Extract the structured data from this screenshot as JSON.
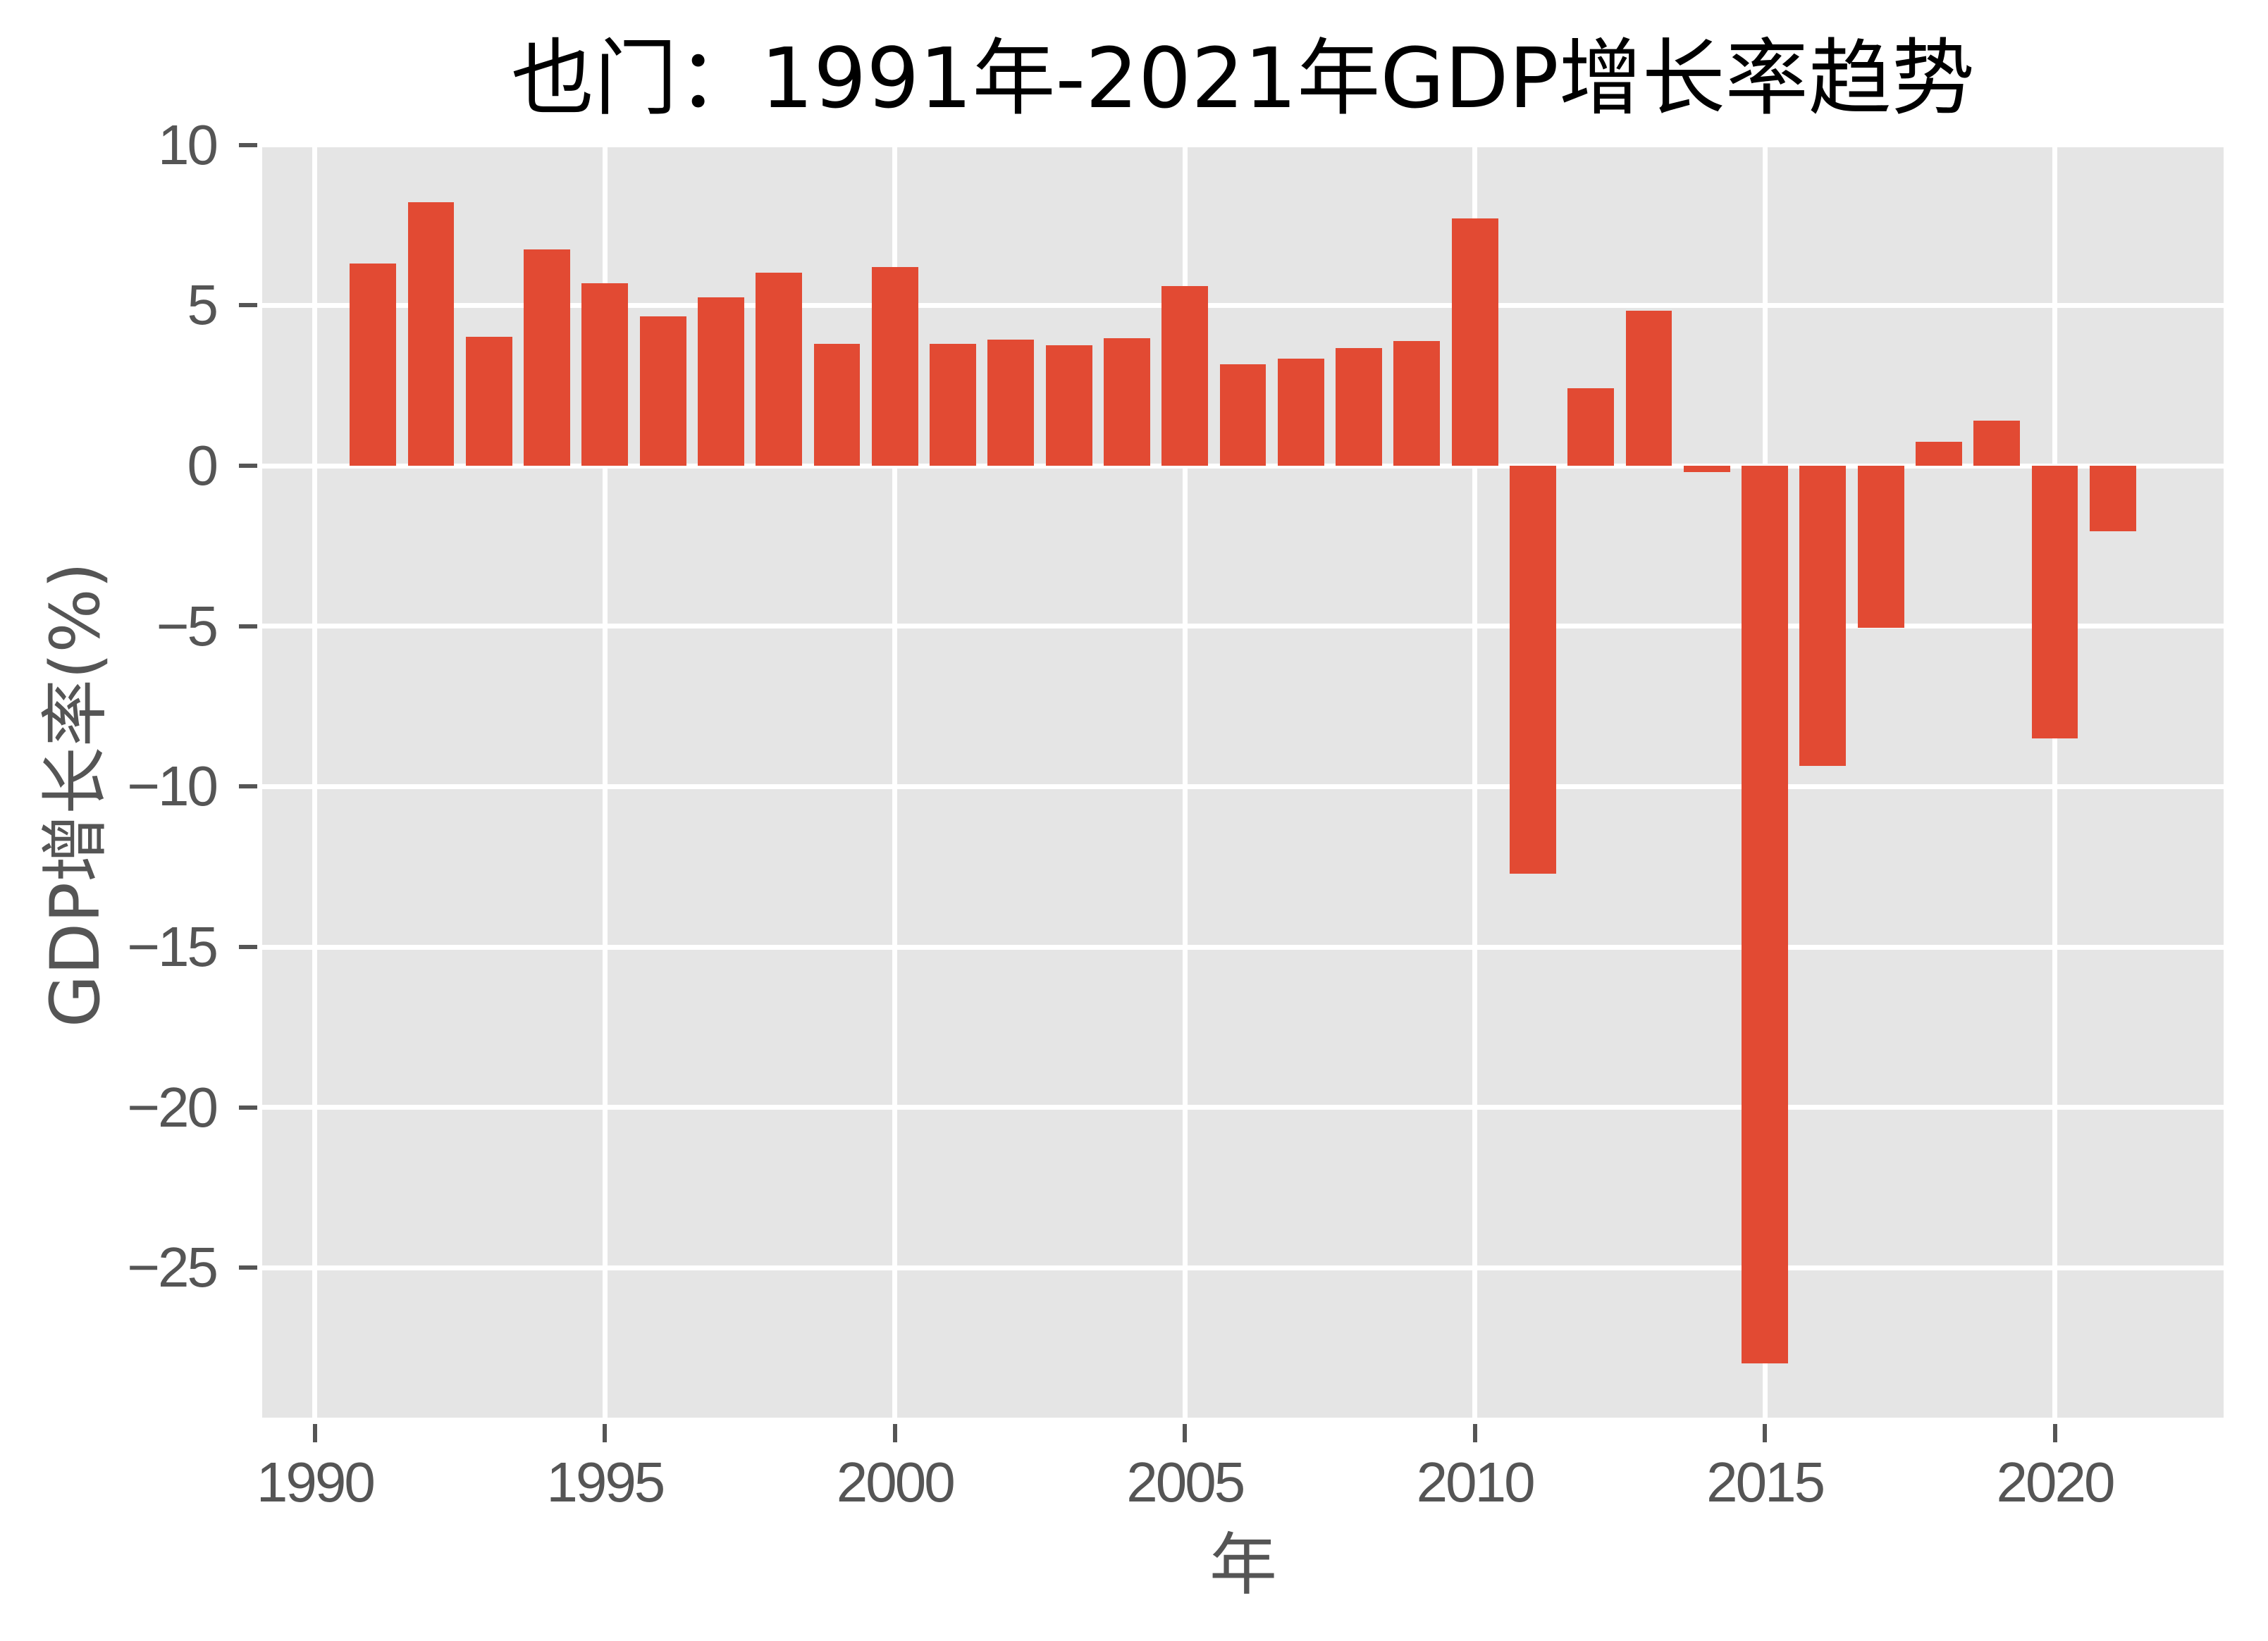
{
  "chart_data": {
    "type": "bar",
    "title": "也门：1991年-2021年GDP增长率趋势",
    "xlabel": "年",
    "ylabel": "GDP增长率(%)",
    "x": [
      1991,
      1992,
      1993,
      1994,
      1995,
      1996,
      1997,
      1998,
      1999,
      2000,
      2001,
      2002,
      2003,
      2004,
      2005,
      2006,
      2007,
      2008,
      2009,
      2010,
      2011,
      2012,
      2013,
      2014,
      2015,
      2016,
      2017,
      2018,
      2019,
      2020,
      2021
    ],
    "categories": [
      "1991",
      "1992",
      "1993",
      "1994",
      "1995",
      "1996",
      "1997",
      "1998",
      "1999",
      "2000",
      "2001",
      "2002",
      "2003",
      "2004",
      "2005",
      "2006",
      "2007",
      "2008",
      "2009",
      "2010",
      "2011",
      "2012",
      "2013",
      "2014",
      "2015",
      "2016",
      "2017",
      "2018",
      "2019",
      "2020",
      "2021"
    ],
    "values": [
      6.31,
      8.22,
      4.02,
      6.75,
      5.69,
      4.65,
      5.25,
      6.02,
      3.79,
      6.2,
      3.81,
      3.94,
      3.75,
      3.98,
      5.6,
      3.17,
      3.35,
      3.66,
      3.88,
      7.72,
      -12.71,
      2.41,
      4.83,
      -0.19,
      -27.97,
      -9.36,
      -5.06,
      0.74,
      1.4,
      -8.49,
      -2.05
    ],
    "bar_width": 0.8,
    "xlim": [
      1989.09,
      2022.91
    ],
    "ylim": [
      -29.67,
      9.95
    ],
    "x_ticks": [
      {
        "value": 1990,
        "label": "1990"
      },
      {
        "value": 1995,
        "label": "1995"
      },
      {
        "value": 2000,
        "label": "2000"
      },
      {
        "value": 2005,
        "label": "2005"
      },
      {
        "value": 2010,
        "label": "2010"
      },
      {
        "value": 2015,
        "label": "2015"
      },
      {
        "value": 2020,
        "label": "2020"
      }
    ],
    "y_ticks": [
      {
        "value": 10,
        "label": "10"
      },
      {
        "value": 5,
        "label": "5"
      },
      {
        "value": 0,
        "label": "0"
      },
      {
        "value": -5,
        "label": "−5"
      },
      {
        "value": -10,
        "label": "−10"
      },
      {
        "value": -15,
        "label": "−15"
      },
      {
        "value": -20,
        "label": "−20"
      },
      {
        "value": -25,
        "label": "−25"
      }
    ],
    "grid": true,
    "legend": null
  },
  "colors": {
    "bar": "#E24A33",
    "plot_background": "#E5E5E5",
    "grid": "#FFFFFF",
    "tick_label": "#555555",
    "title": "#000000"
  }
}
